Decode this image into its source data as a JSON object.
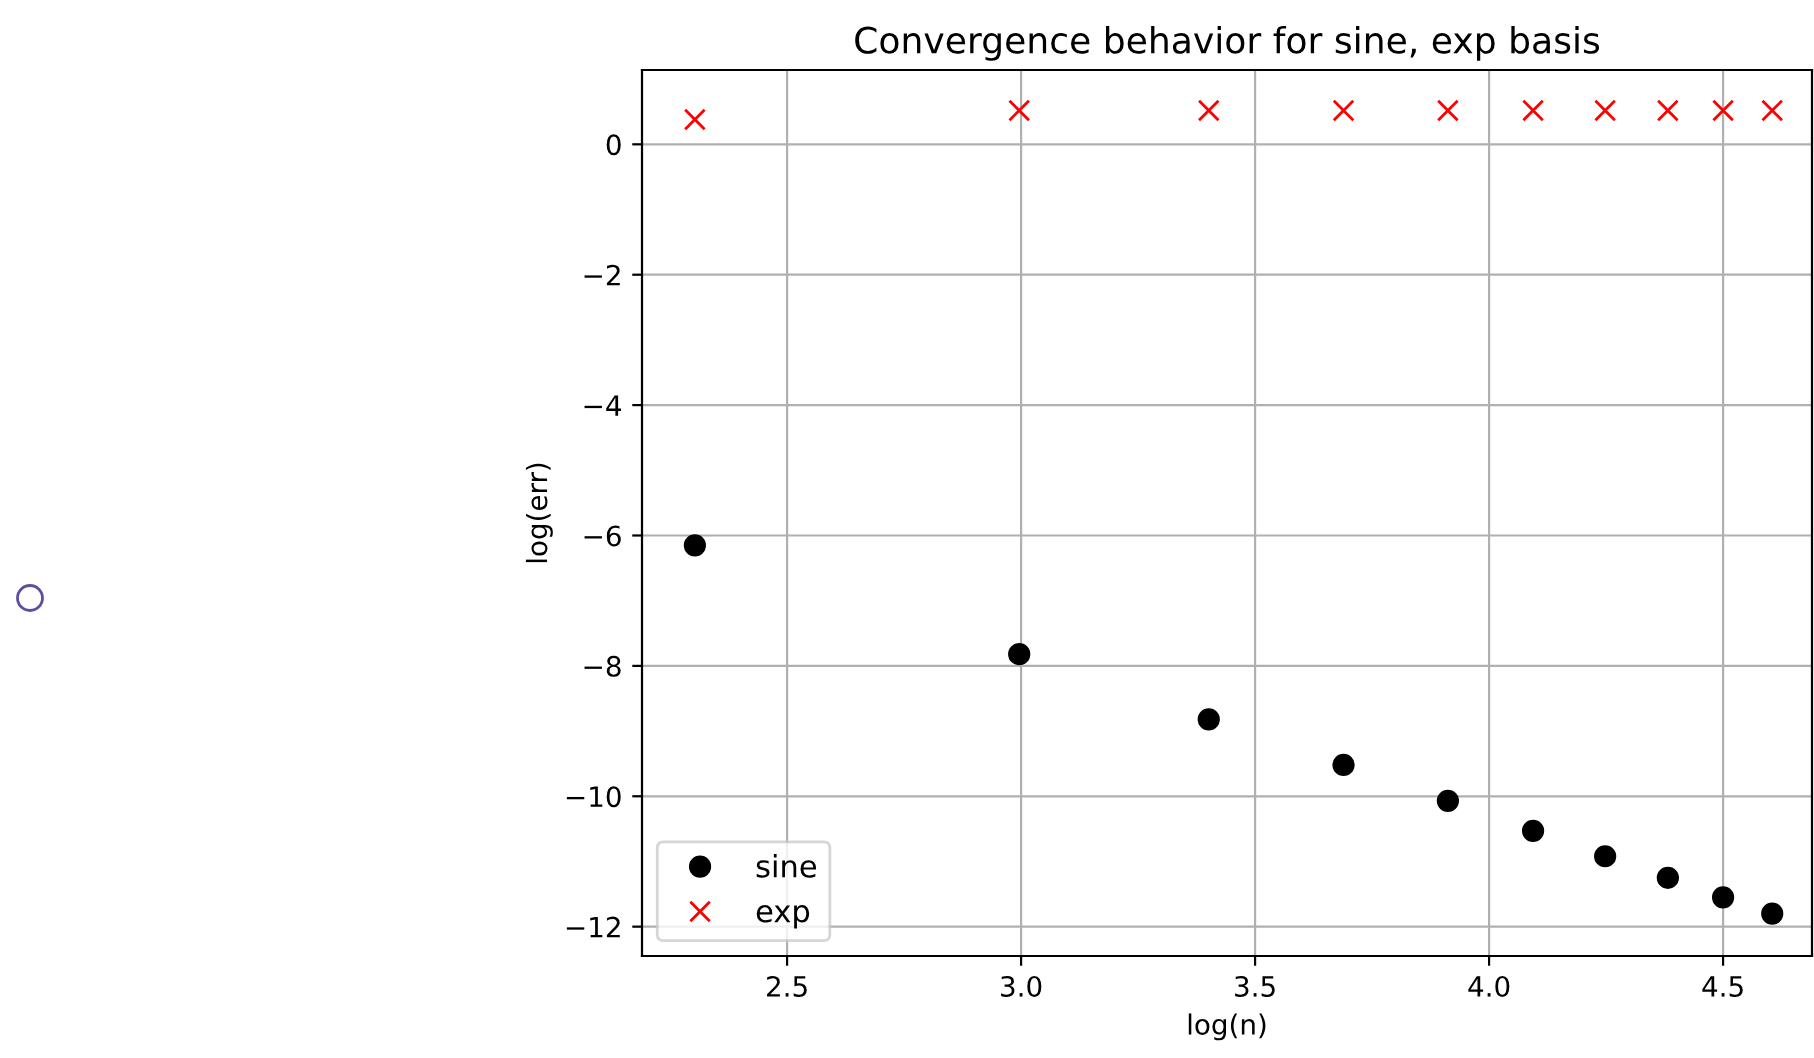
{
  "chart_data": {
    "type": "scatter",
    "title": "Convergence behavior for sine, exp basis",
    "xlabel": "log(n)",
    "ylabel": "log(err)",
    "x": [
      2.303,
      2.996,
      3.401,
      3.689,
      3.912,
      4.094,
      4.248,
      4.382,
      4.5,
      4.605
    ],
    "series": [
      {
        "name": "sine",
        "color": "#000000",
        "marker": "circle",
        "values": [
          -6.15,
          -7.82,
          -8.82,
          -9.52,
          -10.07,
          -10.53,
          -10.92,
          -11.25,
          -11.55,
          -11.8
        ]
      },
      {
        "name": "exp",
        "color": "#ff0000",
        "marker": "cross",
        "values": [
          0.38,
          0.52,
          0.52,
          0.52,
          0.52,
          0.52,
          0.52,
          0.52,
          0.52,
          0.52
        ]
      }
    ],
    "xlim": [
      2.19,
      4.69
    ],
    "ylim": [
      -12.45,
      1.14
    ],
    "xticks": [
      2.5,
      {
        "value": 3,
        "label": "3.0"
      },
      3.5,
      {
        "value": 4,
        "label": "4.0"
      },
      4.5
    ],
    "yticks": [
      {
        "value": -12,
        "label": "−12"
      },
      {
        "value": -10,
        "label": "−10"
      },
      {
        "value": -8,
        "label": "−8"
      },
      {
        "value": -6,
        "label": "−6"
      },
      {
        "value": -4,
        "label": "−4"
      },
      {
        "value": -2,
        "label": "−2"
      },
      0
    ],
    "grid": true,
    "legend": "bottom left"
  }
}
